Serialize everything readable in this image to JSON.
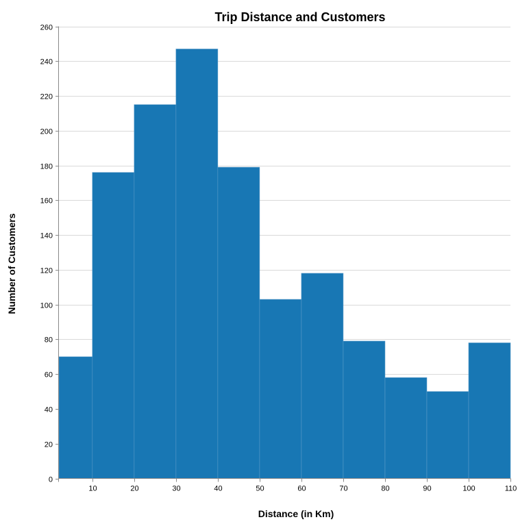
{
  "chart_data": {
    "type": "bar",
    "title": "Trip Distance and Customers",
    "xlabel": "Distance (in Km)",
    "ylabel": "Number of Customers",
    "bins": [
      {
        "start": 2,
        "end": 10,
        "value": 70
      },
      {
        "start": 10,
        "end": 20,
        "value": 176
      },
      {
        "start": 20,
        "end": 30,
        "value": 215
      },
      {
        "start": 30,
        "end": 40,
        "value": 247
      },
      {
        "start": 40,
        "end": 50,
        "value": 179
      },
      {
        "start": 50,
        "end": 60,
        "value": 103
      },
      {
        "start": 60,
        "end": 70,
        "value": 118
      },
      {
        "start": 70,
        "end": 80,
        "value": 79
      },
      {
        "start": 80,
        "end": 90,
        "value": 58
      },
      {
        "start": 90,
        "end": 100,
        "value": 50
      },
      {
        "start": 100,
        "end": 110,
        "value": 78
      }
    ],
    "xlim": [
      2,
      110
    ],
    "ylim": [
      0,
      260
    ],
    "xticks": [
      10,
      20,
      30,
      40,
      50,
      60,
      70,
      80,
      90,
      100,
      110
    ],
    "yticks": [
      0,
      20,
      40,
      60,
      80,
      100,
      120,
      140,
      160,
      180,
      200,
      220,
      240,
      260
    ],
    "grid": true,
    "bar_color": "#1877b4"
  }
}
